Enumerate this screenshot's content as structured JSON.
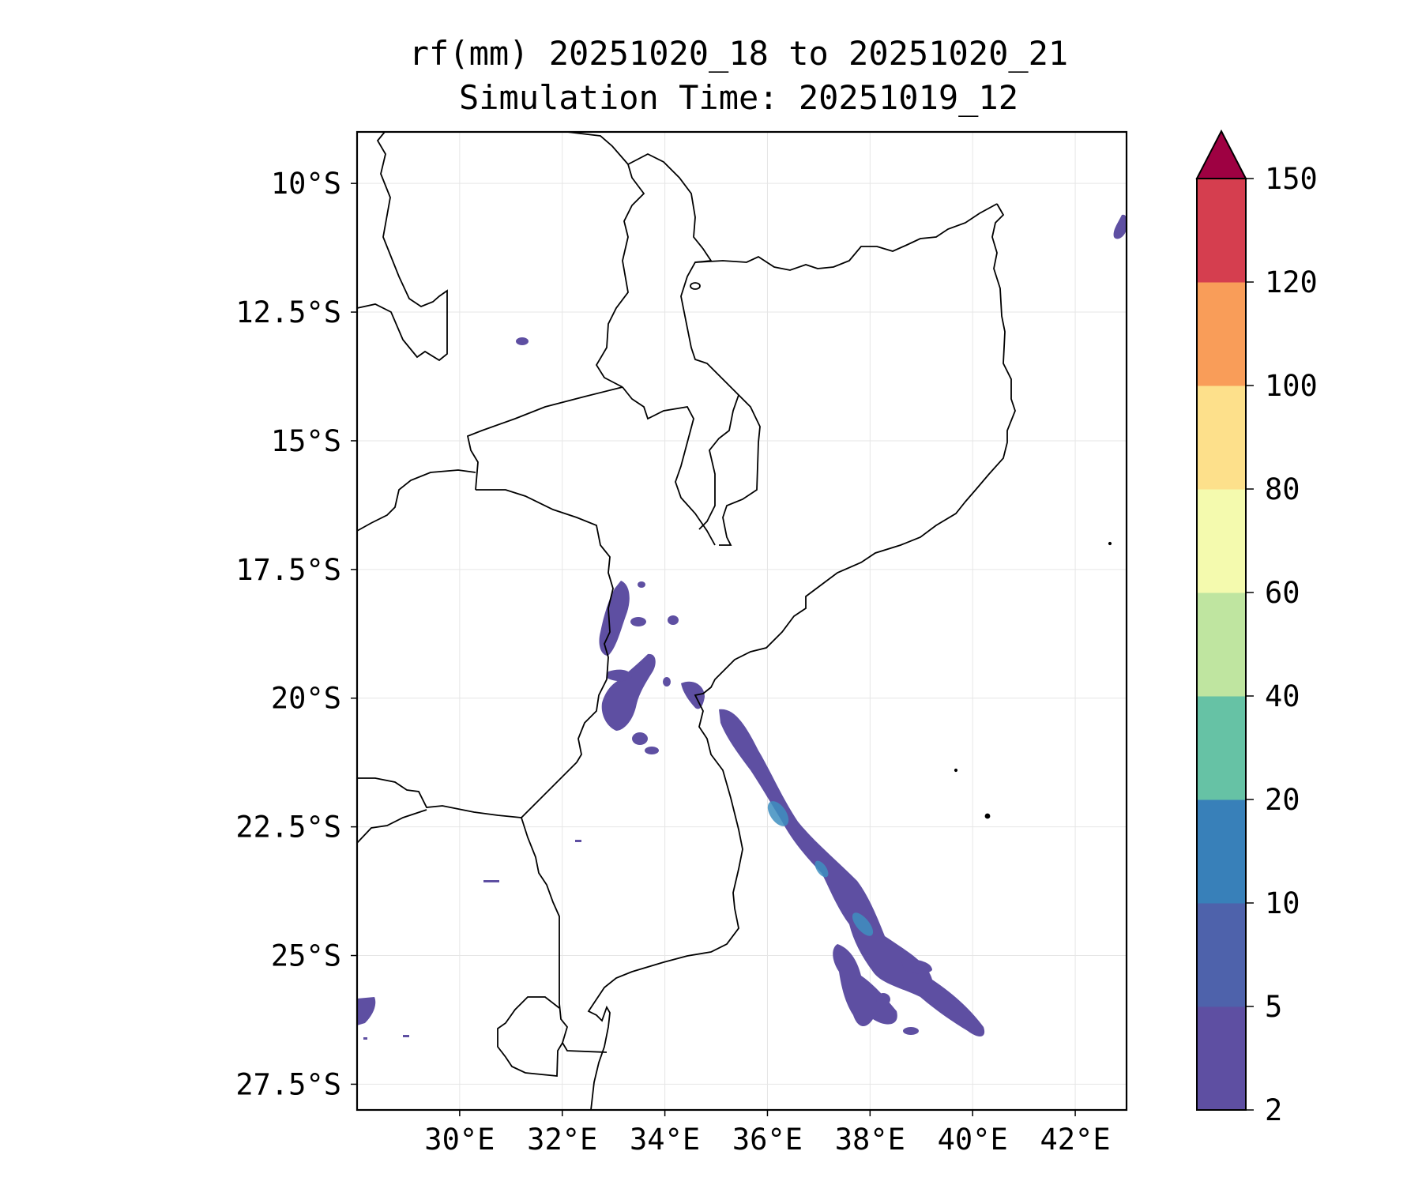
{
  "title_line1": "rf(mm) 20251020_18 to 20251020_21",
  "title_line2": "Simulation Time: 20251019_12",
  "map": {
    "lon_range": [
      28.0,
      43.0
    ],
    "lat_range": [
      -28.0,
      -9.0
    ],
    "x_ticks": [
      {
        "lon": 30,
        "label": "30°E"
      },
      {
        "lon": 32,
        "label": "32°E"
      },
      {
        "lon": 34,
        "label": "34°E"
      },
      {
        "lon": 36,
        "label": "36°E"
      },
      {
        "lon": 38,
        "label": "38°E"
      },
      {
        "lon": 40,
        "label": "40°E"
      },
      {
        "lon": 42,
        "label": "42°E"
      }
    ],
    "y_ticks": [
      {
        "lat": -10,
        "label": "10°S"
      },
      {
        "lat": -12.5,
        "label": "12.5°S"
      },
      {
        "lat": -15,
        "label": "15°S"
      },
      {
        "lat": -17.5,
        "label": "17.5°S"
      },
      {
        "lat": -20,
        "label": "20°S"
      },
      {
        "lat": -22.5,
        "label": "22.5°S"
      },
      {
        "lat": -25,
        "label": "25°S"
      },
      {
        "lat": -27.5,
        "label": "27.5°S"
      }
    ],
    "gridlines": true,
    "border_color": "#000000",
    "rain_color_light": "#5e4fa2",
    "rain_color_mid": "#3f8fc0"
  },
  "colorbar": {
    "levels": [
      "2",
      "5",
      "10",
      "20",
      "40",
      "60",
      "80",
      "100",
      "120",
      "150"
    ],
    "colors": [
      "#5e4fa2",
      "#4e62ab",
      "#3880b9",
      "#66c2a5",
      "#bfe5a0",
      "#f4faae",
      "#fde08b",
      "#f99d59",
      "#d53e4f"
    ],
    "extend_color": "#9e0142",
    "extend": "max"
  }
}
